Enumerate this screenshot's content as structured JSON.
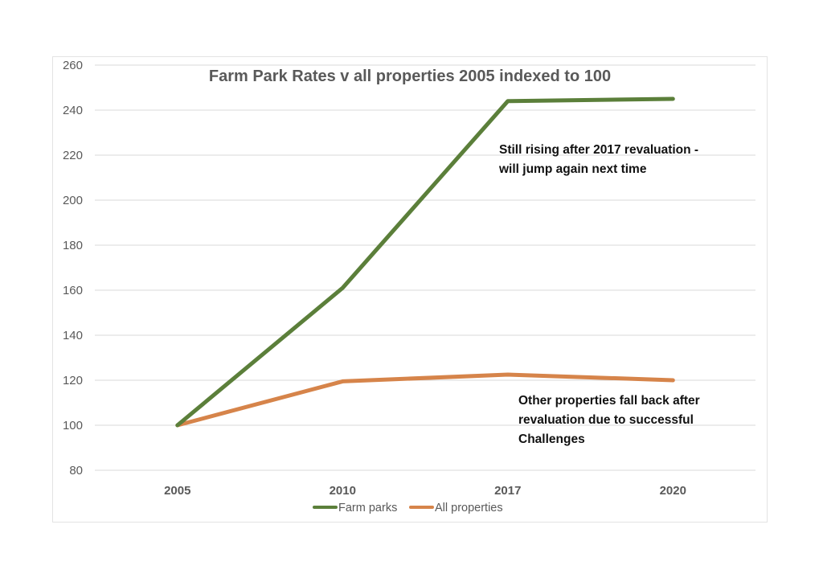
{
  "chart_data": {
    "type": "line",
    "title": "Farm Park Rates v all properties 2005 indexed to 100",
    "categories": [
      "2005",
      "2010",
      "2017",
      "2020"
    ],
    "series": [
      {
        "name": "Farm parks",
        "color": "#5b7f3a",
        "values": [
          100,
          161,
          244,
          245
        ]
      },
      {
        "name": "All properties",
        "color": "#d6844a",
        "values": [
          100,
          119.5,
          122.5,
          120
        ]
      }
    ],
    "ylim": [
      80,
      260
    ],
    "yticks": [
      80,
      100,
      120,
      140,
      160,
      180,
      200,
      220,
      240,
      260
    ],
    "grid": true,
    "legend": "bottom",
    "annotations": [
      {
        "lines": [
          "Still rising after 2017 revaluation -",
          "will jump again next time"
        ]
      },
      {
        "lines": [
          "Other properties fall back after",
          "revaluation due to successful",
          "Challenges"
        ]
      }
    ]
  }
}
